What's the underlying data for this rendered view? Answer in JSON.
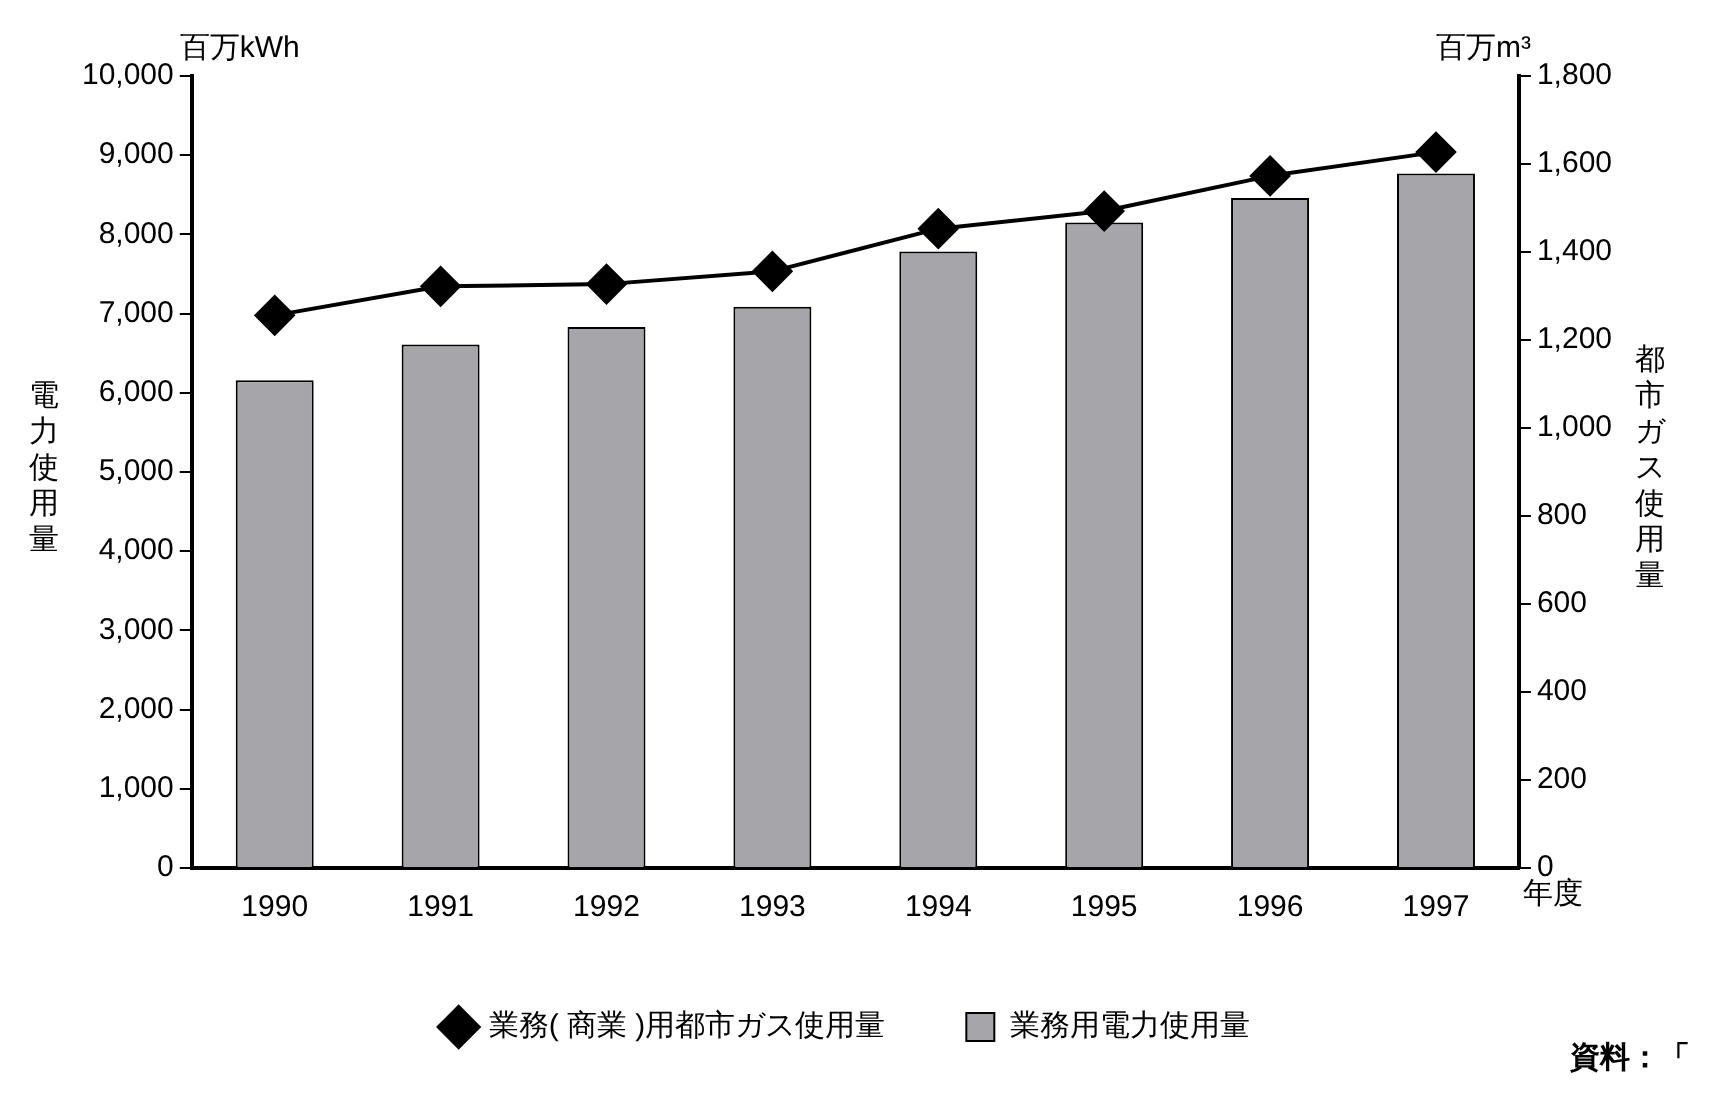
{
  "chart_data": {
    "type": "bar",
    "categories": [
      "1990",
      "1991",
      "1992",
      "1993",
      "1994",
      "1995",
      "1996",
      "1997"
    ],
    "xlabel": "年度",
    "ylabel": "電力使用量",
    "y2label": "都市ガス使用量",
    "ylim": [
      0,
      10000
    ],
    "yticks": [
      0,
      {
        "value": 1000,
        "label": "1,000"
      },
      {
        "value": 2000,
        "label": "2,000"
      },
      {
        "value": 3000,
        "label": "3,000"
      },
      {
        "value": 4000,
        "label": "4,000"
      },
      {
        "value": 5000,
        "label": "5,000"
      },
      {
        "value": 6000,
        "label": "6,000"
      },
      {
        "value": 7000,
        "label": "7,000"
      },
      {
        "value": 8000,
        "label": "8,000"
      },
      {
        "value": 9000,
        "label": "9,000"
      },
      {
        "value": 10000,
        "label": "10,000"
      }
    ],
    "y2lim": [
      0,
      1800
    ],
    "y2ticks": [
      0,
      200,
      400,
      600,
      800,
      {
        "value": 1000,
        "label": "1,000"
      },
      {
        "value": 1200,
        "label": "1,200"
      },
      {
        "value": 1400,
        "label": "1,400"
      },
      {
        "value": 1600,
        "label": "1,600"
      },
      {
        "value": 1800,
        "label": "1,800"
      }
    ],
    "series": [
      {
        "name": "業務用電力使用量",
        "color": "#a6a5aa",
        "values": [
          6160,
          6610,
          6830,
          7085,
          7785,
          8150,
          8460,
          8770
        ]
      },
      {
        "name": "業務( 商業 )用都市ガス使用量",
        "type": "line",
        "axis": "y2",
        "color": "#000000",
        "values": [
          1256,
          1322,
          1327,
          1356,
          1453,
          1493,
          1573,
          1627
        ]
      }
    ],
    "marker": "diamond",
    "legend": "bottom",
    "grid": false,
    "annotations": [
      "百万kWh",
      "百万m³",
      "資料：「"
    ]
  }
}
